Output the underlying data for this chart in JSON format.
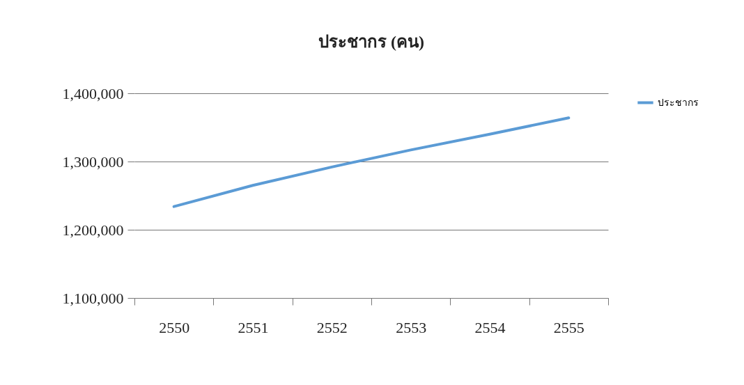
{
  "chart_data": {
    "type": "line",
    "title": "ประชากร (คน)",
    "categories": [
      "2550",
      "2551",
      "2552",
      "2553",
      "2554",
      "2555"
    ],
    "series": [
      {
        "name": "ประชากร",
        "color": "#5b9bd5",
        "values": [
          1234000,
          1265000,
          1292000,
          1317000,
          1340000,
          1364000
        ]
      }
    ],
    "ylim": [
      1100000,
      1400000
    ],
    "yticks": [
      {
        "value": 1100000,
        "label": "1,100,000"
      },
      {
        "value": 1200000,
        "label": "1,200,000"
      },
      {
        "value": 1300000,
        "label": "1,300,000"
      },
      {
        "value": 1400000,
        "label": "1,400,000"
      }
    ],
    "grid": "y",
    "legend": "right",
    "marker": "none",
    "line_style": "solid"
  }
}
